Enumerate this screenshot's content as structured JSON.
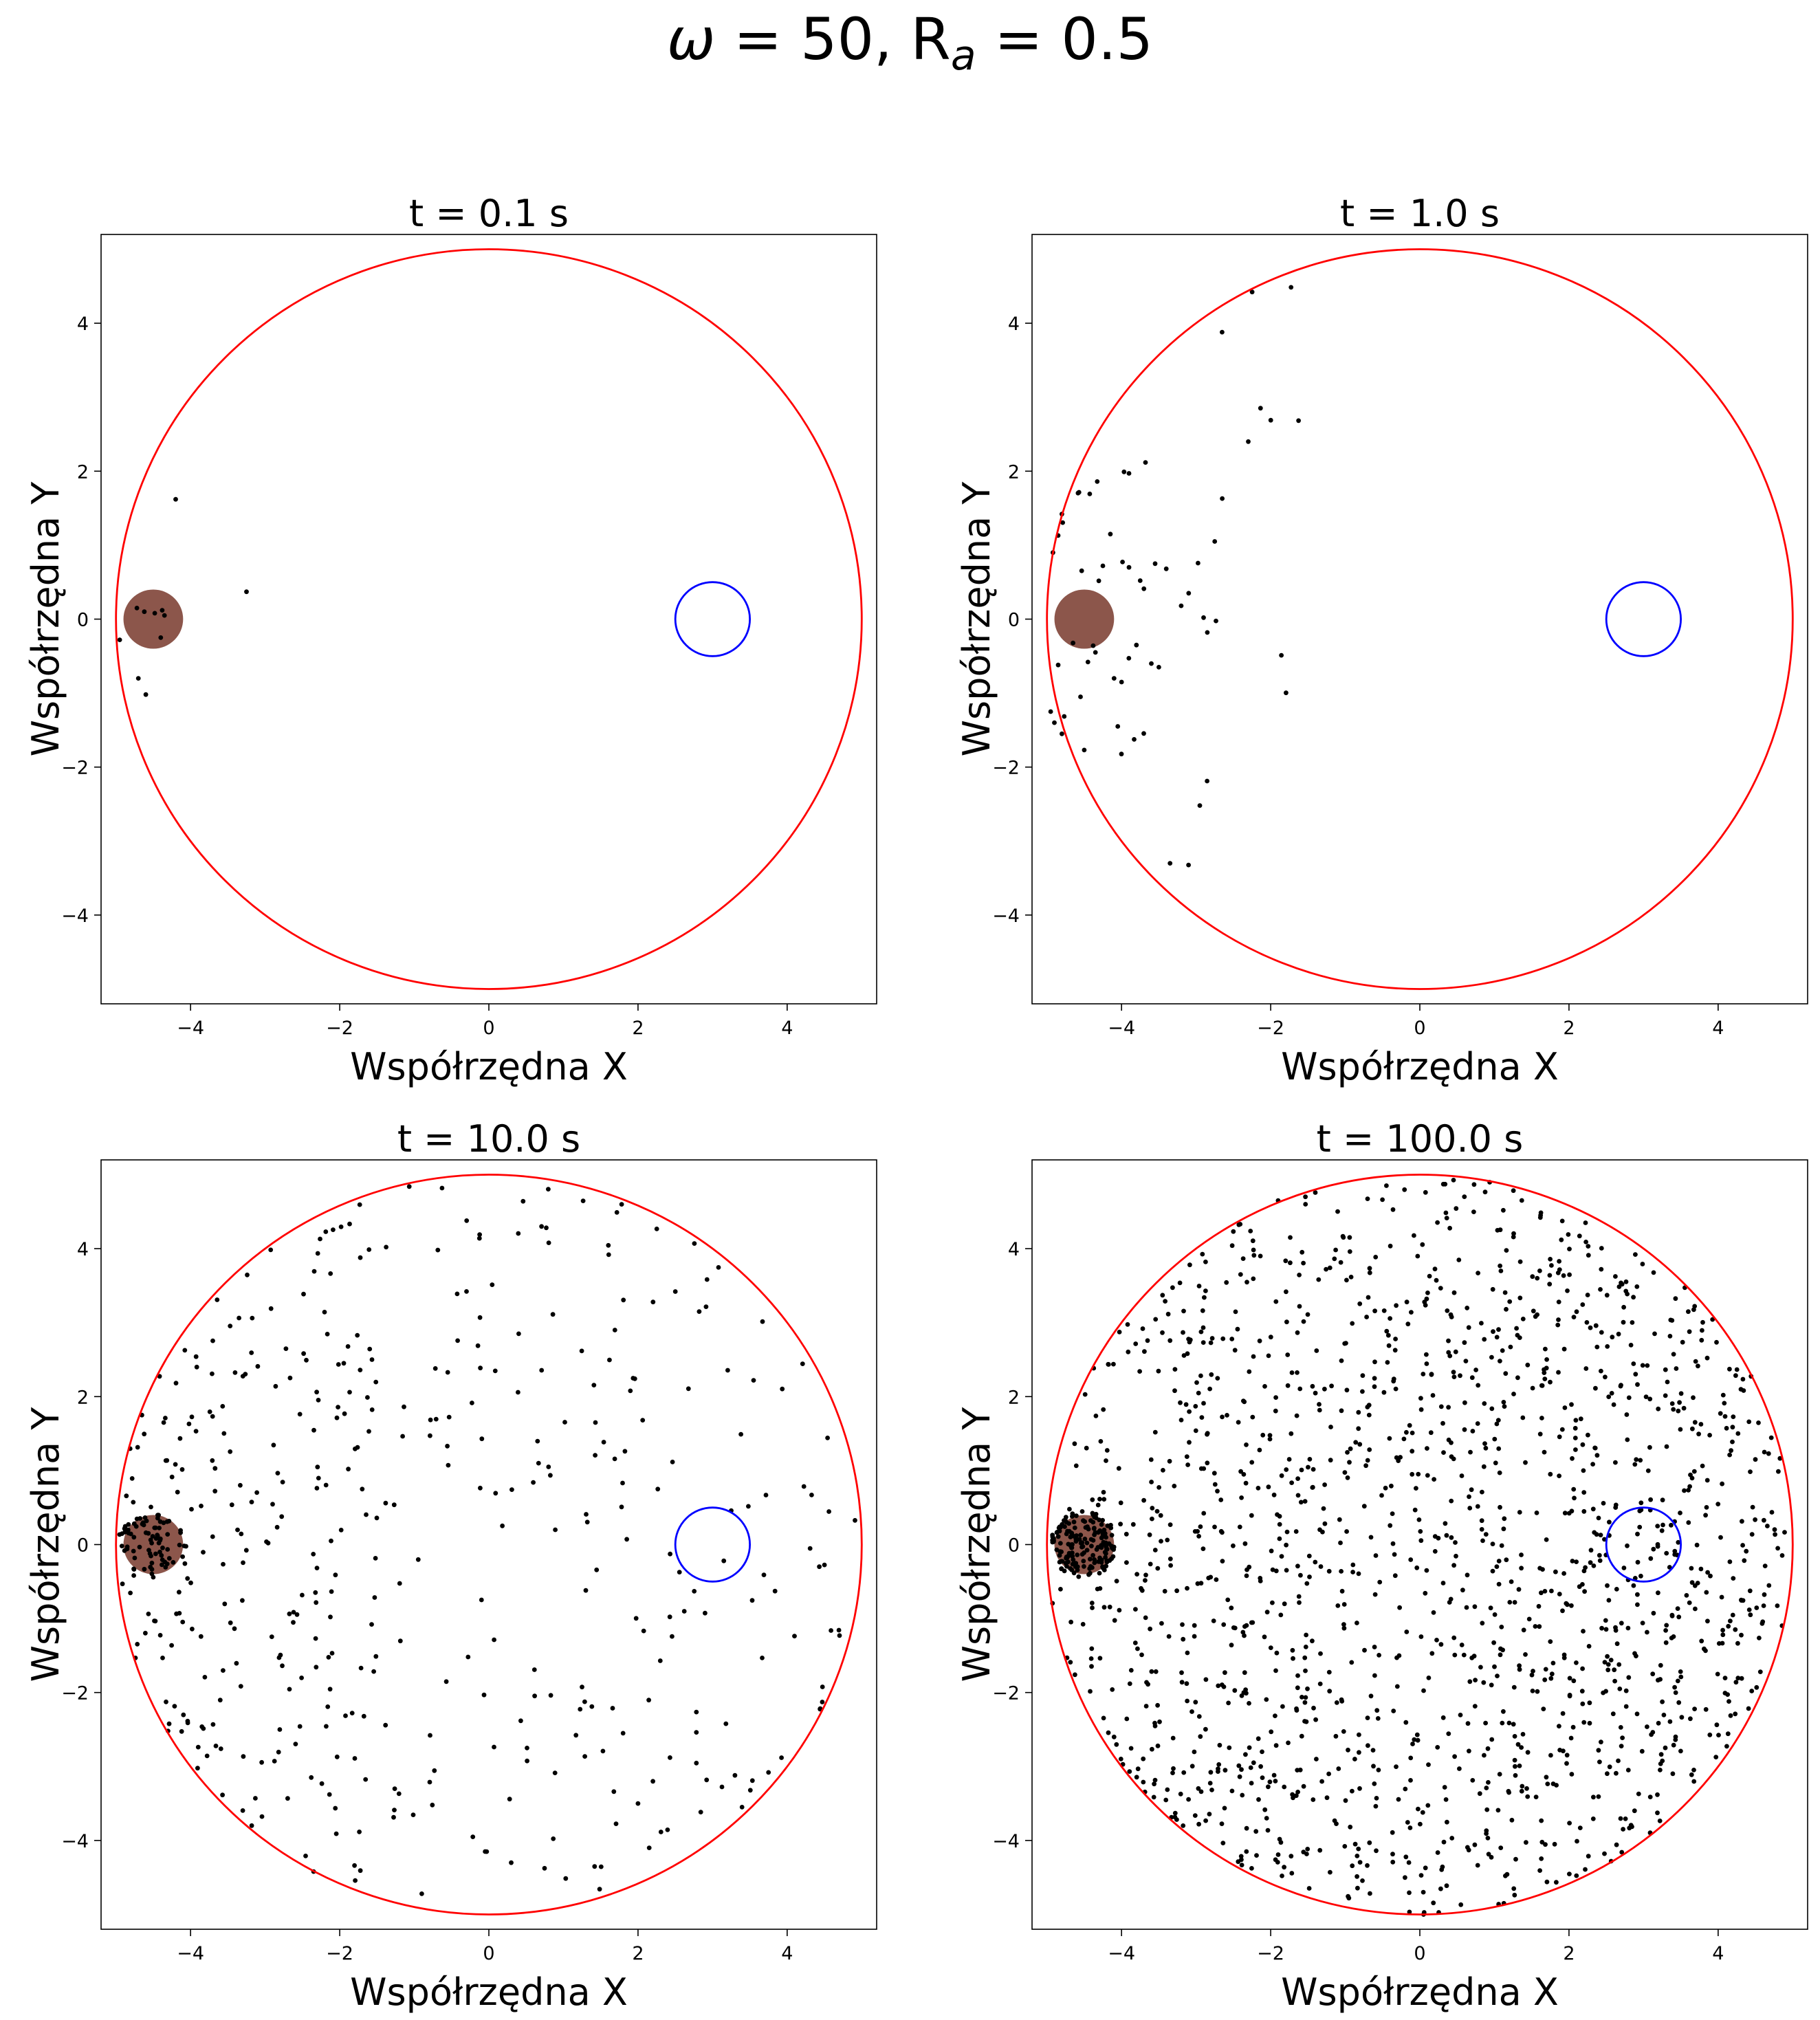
{
  "figure": {
    "suptitle_omega": "ω",
    "suptitle_part1": " = 50, R",
    "suptitle_sub": "a",
    "suptitle_part2": " = 0.5"
  },
  "colors": {
    "boundary": "#ff0000",
    "target": "#0000ff",
    "source": "#8c564b",
    "particles": "#000000"
  },
  "chart_data": [
    {
      "type": "scatter",
      "title": "t = 0.1 s",
      "xlabel": "Współrzędna X",
      "ylabel": "Współrzędna Y",
      "xlim": [
        -5.2,
        5.2
      ],
      "ylim": [
        -5.2,
        5.2
      ],
      "xticks": [
        -4,
        -2,
        0,
        2,
        4
      ],
      "yticks": [
        -4,
        -2,
        0,
        2,
        4
      ],
      "grid": false,
      "shapes": {
        "boundary_circle": {
          "cx": 0,
          "cy": 0,
          "r": 5
        },
        "source_disk": {
          "cx": -4.5,
          "cy": 0,
          "r": 0.4
        },
        "target_circle": {
          "cx": 3,
          "cy": 0,
          "r": 0.5
        }
      },
      "points": [
        [
          -4.2,
          1.62
        ],
        [
          -3.25,
          0.37
        ],
        [
          -4.72,
          0.15
        ],
        [
          -4.62,
          0.1
        ],
        [
          -4.48,
          0.08
        ],
        [
          -4.38,
          0.12
        ],
        [
          -4.95,
          -0.28
        ],
        [
          -4.4,
          -0.25
        ],
        [
          -4.7,
          -0.8
        ],
        [
          -4.6,
          -1.02
        ],
        [
          -4.35,
          0.05
        ]
      ],
      "cloud": null
    },
    {
      "type": "scatter",
      "title": "t = 1.0 s",
      "xlabel": "Współrzędna X",
      "ylabel": "Współrzędna Y",
      "xlim": [
        -5.2,
        5.2
      ],
      "ylim": [
        -5.2,
        5.2
      ],
      "xticks": [
        -4,
        -2,
        0,
        2,
        4
      ],
      "yticks": [
        -4,
        -2,
        0,
        2,
        4
      ],
      "grid": false,
      "shapes": {
        "boundary_circle": {
          "cx": 0,
          "cy": 0,
          "r": 5
        },
        "source_disk": {
          "cx": -4.5,
          "cy": 0,
          "r": 0.4
        },
        "target_circle": {
          "cx": 3,
          "cy": 0,
          "r": 0.5
        }
      },
      "points": [
        [
          -2.3,
          2.4
        ],
        [
          -3.9,
          1.97
        ],
        [
          -2.65,
          1.63
        ],
        [
          -4.8,
          1.42
        ],
        [
          -4.85,
          1.13
        ],
        [
          -4.15,
          1.15
        ],
        [
          -3.9,
          0.7
        ],
        [
          -3.55,
          0.75
        ],
        [
          -3.75,
          0.52
        ],
        [
          -3.4,
          0.68
        ],
        [
          -4.25,
          0.72
        ],
        [
          -4.92,
          0.9
        ],
        [
          -3.2,
          0.18
        ],
        [
          -2.9,
          0.02
        ],
        [
          -2.85,
          -0.18
        ],
        [
          -3.6,
          -0.6
        ],
        [
          -3.5,
          -0.65
        ],
        [
          -4.35,
          -0.45
        ],
        [
          -4.45,
          -0.58
        ],
        [
          -4.85,
          -0.62
        ],
        [
          -4.1,
          -0.8
        ],
        [
          -4.0,
          -0.85
        ],
        [
          -4.55,
          -1.05
        ],
        [
          -4.95,
          -1.25
        ],
        [
          -4.9,
          -1.4
        ],
        [
          -4.8,
          -1.55
        ],
        [
          -4.5,
          -1.77
        ],
        [
          -4.05,
          -1.45
        ],
        [
          -2.95,
          -2.52
        ],
        [
          -3.35,
          -3.3
        ],
        [
          -3.1,
          0.35
        ],
        [
          -2.75,
          1.05
        ],
        [
          -3.8,
          -0.35
        ]
      ],
      "cloud": {
        "count": 30,
        "seed": 3,
        "weights": [
          0.8,
          0.2,
          0,
          0
        ],
        "concentration": 0
      }
    },
    {
      "type": "scatter",
      "title": "t = 10.0 s",
      "xlabel": "Współrzędna X",
      "ylabel": "Współrzędna Y",
      "xlim": [
        -5.2,
        5.2
      ],
      "ylim": [
        -5.2,
        5.2
      ],
      "xticks": [
        -4,
        -2,
        0,
        2,
        4
      ],
      "yticks": [
        -4,
        -2,
        0,
        2,
        4
      ],
      "grid": false,
      "shapes": {
        "boundary_circle": {
          "cx": 0,
          "cy": 0,
          "r": 5
        },
        "source_disk": {
          "cx": -4.5,
          "cy": 0,
          "r": 0.4
        },
        "target_circle": {
          "cx": 3,
          "cy": 0,
          "r": 0.5
        }
      },
      "points": [
        [
          3.55,
          2.22
        ],
        [
          3.75,
          -3.08
        ],
        [
          3.3,
          -3.12
        ],
        [
          3.15,
          -0.22
        ],
        [
          2.82,
          3.15
        ],
        [
          2.5,
          3.42
        ],
        [
          2.2,
          -3.2
        ],
        [
          2.15,
          -4.1
        ],
        [
          1.78,
          4.6
        ],
        [
          -0.9,
          -4.72
        ],
        [
          0.3,
          -4.3
        ],
        [
          -0.05,
          -4.15
        ],
        [
          -2.35,
          -4.42
        ],
        [
          2.0,
          -3.5
        ],
        [
          1.8,
          -2.55
        ],
        [
          1.3,
          -0.62
        ],
        [
          0.8,
          1.05
        ],
        [
          0.4,
          2.85
        ]
      ],
      "cloud": {
        "count": 480,
        "seed": 11,
        "weights": [
          0.33,
          0.27,
          0.16,
          0.24
        ],
        "concentration": 0.1
      }
    },
    {
      "type": "scatter",
      "title": "t = 100.0 s",
      "xlabel": "Współrzędna X",
      "ylabel": "Współrzędna Y",
      "xlim": [
        -5.2,
        5.2
      ],
      "ylim": [
        -5.2,
        5.2
      ],
      "xticks": [
        -4,
        -2,
        0,
        2,
        4
      ],
      "yticks": [
        -4,
        -2,
        0,
        2,
        4
      ],
      "grid": false,
      "shapes": {
        "boundary_circle": {
          "cx": 0,
          "cy": 0,
          "r": 5
        },
        "source_disk": {
          "cx": -4.5,
          "cy": 0,
          "r": 0.4
        },
        "target_circle": {
          "cx": 3,
          "cy": 0,
          "r": 0.5
        }
      },
      "points": [
        [
          4.8,
          -0.05
        ],
        [
          4.62,
          1.25
        ],
        [
          4.45,
          -1.98
        ],
        [
          0.05,
          -5.0
        ],
        [
          -1.9,
          4.65
        ],
        [
          -4.1,
          -2.6
        ]
      ],
      "cloud": {
        "count": 1650,
        "seed": 29,
        "weights": [
          0.12,
          0.2,
          0.23,
          0.45
        ],
        "concentration": 0.08
      }
    }
  ]
}
